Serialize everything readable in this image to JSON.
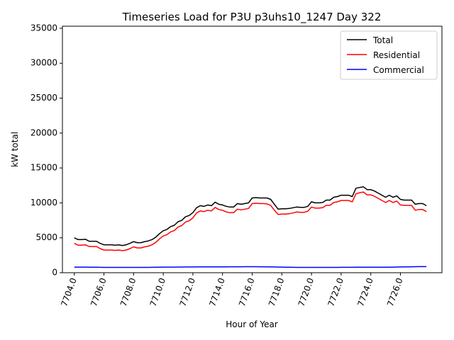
{
  "chart_data": {
    "type": "line",
    "title": "Timeseries Load for P3U p3uhs10_1247  Day 322",
    "xlabel": "Hour of Year",
    "ylabel": "kW total",
    "xlim": [
      7703.2,
      7728.8
    ],
    "ylim": [
      0,
      35300
    ],
    "xticks": [
      7704,
      7706,
      7708,
      7710,
      7712,
      7714,
      7716,
      7718,
      7720,
      7722,
      7724,
      7726
    ],
    "xtick_labels": [
      "7704.0",
      "7706.0",
      "7708.0",
      "7710.0",
      "7712.0",
      "7714.0",
      "7716.0",
      "7718.0",
      "7720.0",
      "7722.0",
      "7724.0",
      "7726.0"
    ],
    "yticks": [
      0,
      5000,
      10000,
      15000,
      20000,
      25000,
      30000,
      35000
    ],
    "ytick_labels": [
      "0",
      "5000",
      "10000",
      "15000",
      "20000",
      "25000",
      "30000",
      "35000"
    ],
    "legend_position": "top-right",
    "x": [
      7704.0,
      7704.25,
      7704.5,
      7704.75,
      7705.0,
      7705.25,
      7705.5,
      7705.75,
      7706.0,
      7706.25,
      7706.5,
      7706.75,
      7707.0,
      7707.25,
      7707.5,
      7707.75,
      7708.0,
      7708.25,
      7708.5,
      7708.75,
      7709.0,
      7709.25,
      7709.5,
      7709.75,
      7710.0,
      7710.25,
      7710.5,
      7710.75,
      7711.0,
      7711.25,
      7711.5,
      7711.75,
      7712.0,
      7712.25,
      7712.5,
      7712.75,
      7713.0,
      7713.25,
      7713.5,
      7713.75,
      7714.0,
      7714.25,
      7714.5,
      7714.75,
      7715.0,
      7715.25,
      7715.5,
      7715.75,
      7716.0,
      7716.25,
      7716.5,
      7716.75,
      7717.0,
      7717.25,
      7717.5,
      7717.75,
      7718.0,
      7718.25,
      7718.5,
      7718.75,
      7719.0,
      7719.25,
      7719.5,
      7719.75,
      7720.0,
      7720.25,
      7720.5,
      7720.75,
      7721.0,
      7721.25,
      7721.5,
      7721.75,
      7722.0,
      7722.25,
      7722.5,
      7722.75,
      7723.0,
      7723.25,
      7723.5,
      7723.75,
      7724.0,
      7724.25,
      7724.5,
      7724.75,
      7725.0,
      7725.25,
      7725.5,
      7725.75,
      7726.0,
      7726.25,
      7726.5,
      7726.75,
      7727.0,
      7727.25,
      7727.5,
      7727.75
    ],
    "series": [
      {
        "name": "Total",
        "color": "#000000",
        "values": [
          5000,
          4750,
          4750,
          4800,
          4500,
          4500,
          4500,
          4200,
          4000,
          4000,
          4000,
          3950,
          4000,
          3900,
          4000,
          4200,
          4450,
          4300,
          4300,
          4450,
          4550,
          4750,
          5100,
          5600,
          6000,
          6200,
          6600,
          6800,
          7300,
          7500,
          8000,
          8200,
          8600,
          9300,
          9600,
          9500,
          9700,
          9600,
          10100,
          9800,
          9700,
          9500,
          9400,
          9400,
          9900,
          9800,
          9900,
          10000,
          10700,
          10750,
          10700,
          10700,
          10700,
          10500,
          9800,
          9100,
          9150,
          9150,
          9200,
          9300,
          9400,
          9350,
          9350,
          9500,
          10150,
          10000,
          10000,
          10050,
          10400,
          10400,
          10800,
          10900,
          11100,
          11100,
          11100,
          10900,
          12100,
          12200,
          12300,
          11900,
          11900,
          11700,
          11400,
          11100,
          10800,
          11100,
          10800,
          11000,
          10500,
          10400,
          10400,
          10400,
          9800,
          9900,
          9900,
          9600
        ]
      },
      {
        "name": "Residential",
        "color": "#ff0000",
        "values": [
          4200,
          3950,
          3950,
          4000,
          3750,
          3750,
          3750,
          3450,
          3250,
          3250,
          3250,
          3200,
          3250,
          3150,
          3250,
          3450,
          3700,
          3550,
          3550,
          3700,
          3800,
          4000,
          4350,
          4850,
          5250,
          5450,
          5850,
          6050,
          6550,
          6750,
          7250,
          7450,
          7850,
          8550,
          8850,
          8750,
          8950,
          8850,
          9350,
          9050,
          8950,
          8700,
          8600,
          8600,
          9100,
          9000,
          9100,
          9200,
          9900,
          9950,
          9900,
          9900,
          9850,
          9650,
          8950,
          8350,
          8400,
          8400,
          8450,
          8550,
          8700,
          8650,
          8650,
          8800,
          9400,
          9250,
          9250,
          9300,
          9650,
          9650,
          10050,
          10150,
          10350,
          10350,
          10350,
          10150,
          11300,
          11450,
          11550,
          11150,
          11150,
          10950,
          10650,
          10350,
          10050,
          10350,
          10050,
          10250,
          9700,
          9650,
          9650,
          9650,
          8950,
          9050,
          9050,
          8750
        ]
      },
      {
        "name": "Commercial",
        "color": "#0000ff",
        "values": [
          800,
          800,
          800,
          800,
          790,
          790,
          780,
          770,
          760,
          760,
          760,
          760,
          760,
          760,
          760,
          760,
          760,
          760,
          760,
          760,
          760,
          770,
          780,
          790,
          800,
          800,
          800,
          800,
          810,
          810,
          820,
          820,
          820,
          830,
          830,
          830,
          830,
          840,
          840,
          840,
          840,
          840,
          850,
          850,
          850,
          850,
          860,
          860,
          860,
          860,
          850,
          850,
          840,
          830,
          820,
          810,
          800,
          790,
          780,
          770,
          760,
          760,
          760,
          760,
          760,
          760,
          760,
          760,
          760,
          760,
          760,
          760,
          770,
          770,
          770,
          770,
          780,
          780,
          780,
          780,
          780,
          780,
          780,
          780,
          780,
          790,
          800,
          810,
          820,
          830,
          840,
          850,
          860,
          870,
          870,
          870
        ]
      }
    ]
  }
}
